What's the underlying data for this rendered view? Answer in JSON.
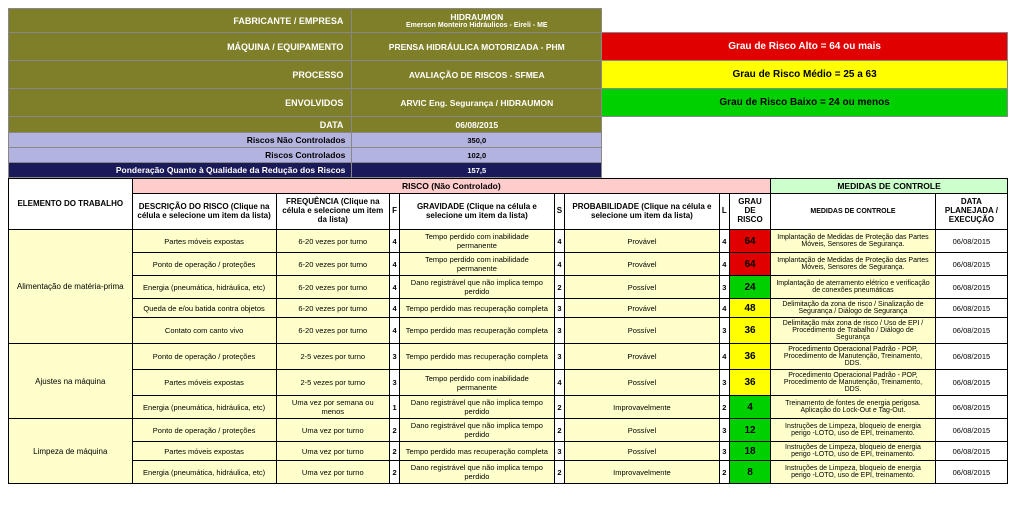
{
  "header": {
    "rows": [
      {
        "label": "FABRICANTE / EMPRESA",
        "value_top": "HIDRAUMON",
        "value_bot": "Emerson Monteiro Hidráulicos - Eireli - ME",
        "legend": null
      },
      {
        "label": "MÁQUINA / EQUIPAMENTO",
        "value": "PRENSA HIDRÁULICA MOTORIZADA - PHM",
        "legend": "alto"
      },
      {
        "label": "PROCESSO",
        "value": "AVALIAÇÃO DE RISCOS - SFMEA",
        "legend": "medio"
      },
      {
        "label": "ENVOLVIDOS",
        "value": "ARVIC Eng. Segurança / HIDRAUMON",
        "legend": "baixo"
      },
      {
        "label": "DATA",
        "value": "06/08/2015",
        "legend": null
      }
    ],
    "legend_text": {
      "alto": "Grau de Risco Alto = 64 ou mais",
      "medio": "Grau de Risco Médio = 25 a 63",
      "baixo": "Grau de Risco Baixo = 24 ou menos"
    },
    "stats": [
      {
        "label": "Riscos Não Controlados",
        "value": "350,0",
        "dark": false
      },
      {
        "label": "Riscos Controlados",
        "value": "102,0",
        "dark": false
      },
      {
        "label": "Ponderação Quanto à Qualidade da Redução dos Riscos",
        "value": "157,5",
        "dark": true
      }
    ]
  },
  "grid": {
    "section_risk": "RISCO (Não Controlado)",
    "section_ctrl": "MEDIDAS DE CONTROLE",
    "cols": {
      "elemento": "ELEMENTO DO TRABALHO",
      "descricao": "DESCRIÇÃO DO RISCO (Clique na célula e selecione um item da lista)",
      "freq": "FREQUÊNCIA (Clique na célula e selecione um item da lista)",
      "f": "F",
      "grav": "GRAVIDADE (Clique na célula e selecione um item da lista)",
      "s": "S",
      "prob": "PROBABILIDADE (Clique na célula e selecione um item da lista)",
      "l": "L",
      "grau": "GRAU DE RISCO",
      "medidas": "MEDIDAS DE CONTROLE",
      "data": "DATA PLANEJADA / EXECUÇÃO"
    },
    "groups": [
      {
        "elemento": "Alimentação de matéria-prima",
        "rows": [
          {
            "desc": "Partes móveis expostas",
            "freq": "6-20 vezes por turno",
            "f": "4",
            "grav": "Tempo perdido com inabilidade permanente",
            "s": "4",
            "prob": "Provável",
            "l": "4",
            "grau": "64",
            "gclass": "g-red",
            "med": "Implantação de Medidas de Proteção das Partes Móveis, Sensores de Segurança.",
            "date": "06/08/2015"
          },
          {
            "desc": "Ponto de operação / proteções",
            "freq": "6-20 vezes por turno",
            "f": "4",
            "grav": "Tempo perdido com inabilidade permanente",
            "s": "4",
            "prob": "Provável",
            "l": "4",
            "grau": "64",
            "gclass": "g-red",
            "med": "Implantação de Medidas de Proteção das Partes Móveis, Sensores de Segurança.",
            "date": "06/08/2015"
          },
          {
            "desc": "Energia (pneumática, hidráulica, etc)",
            "freq": "6-20 vezes por turno",
            "f": "4",
            "grav": "Dano registrável que não implica tempo perdido",
            "s": "2",
            "prob": "Possível",
            "l": "3",
            "grau": "24",
            "gclass": "g-grn",
            "med": "Implantação de aterramento elétrico e verificação de conexões pneumáticas",
            "date": "06/08/2015"
          },
          {
            "desc": "Queda de e/ou batida contra objetos",
            "freq": "6-20 vezes por turno",
            "f": "4",
            "grav": "Tempo perdido mas recuperação completa",
            "s": "3",
            "prob": "Provável",
            "l": "4",
            "grau": "48",
            "gclass": "g-yel",
            "med": "Delimitação da zona de risco / Sinalização de Segurança / Diálogo de Segurança",
            "date": "06/08/2015"
          },
          {
            "desc": "Contato com canto vivo",
            "freq": "6-20 vezes por turno",
            "f": "4",
            "grav": "Tempo perdido mas recuperação completa",
            "s": "3",
            "prob": "Possível",
            "l": "3",
            "grau": "36",
            "gclass": "g-yel",
            "med": "Delimitação máx zona de risco / Uso de EPI / Procedimento de Trabalho / Diálogo de Segurança",
            "date": "06/08/2015"
          }
        ]
      },
      {
        "elemento": "Ajustes na máquina",
        "rows": [
          {
            "desc": "Ponto de operação / proteções",
            "freq": "2-5 vezes por turno",
            "f": "3",
            "grav": "Tempo perdido mas recuperação completa",
            "s": "3",
            "prob": "Provável",
            "l": "4",
            "grau": "36",
            "gclass": "g-yel",
            "med": "Procedimento Operacional Padrão - POP, Procedimento de Manutenção, Treinamento, DDS.",
            "date": "06/08/2015"
          },
          {
            "desc": "Partes móveis expostas",
            "freq": "2-5 vezes por turno",
            "f": "3",
            "grav": "Tempo perdido com inabilidade permanente",
            "s": "4",
            "prob": "Possível",
            "l": "3",
            "grau": "36",
            "gclass": "g-yel",
            "med": "Procedimento Operacional Padrão - POP, Procedimento de Manutenção, Treinamento, DDS.",
            "date": "06/08/2015"
          },
          {
            "desc": "Energia (pneumática, hidráulica, etc)",
            "freq": "Uma vez por semana ou menos",
            "f": "1",
            "grav": "Dano registrável que não implica tempo perdido",
            "s": "2",
            "prob": "Improvavelmente",
            "l": "2",
            "grau": "4",
            "gclass": "g-grn",
            "med": "Treinamento de fontes de energia perigosa. Aplicação do Lock-Out e Tag-Out.",
            "date": "06/08/2015"
          }
        ]
      },
      {
        "elemento": "Limpeza de máquina",
        "rows": [
          {
            "desc": "Ponto de operação / proteções",
            "freq": "Uma vez por turno",
            "f": "2",
            "grav": "Dano registrável que não implica tempo perdido",
            "s": "2",
            "prob": "Possível",
            "l": "3",
            "grau": "12",
            "gclass": "g-grn",
            "med": "Instruções de Limpeza, bloqueio de energia perigo -LOTO, uso de EPI, treinamento.",
            "date": "06/08/2015"
          },
          {
            "desc": "Partes móveis expostas",
            "freq": "Uma vez por turno",
            "f": "2",
            "grav": "Tempo perdido mas recuperação completa",
            "s": "3",
            "prob": "Possível",
            "l": "3",
            "grau": "18",
            "gclass": "g-grn",
            "med": "Instruções de Limpeza, bloqueio de energia perigo -LOTO, uso de EPI, treinamento.",
            "date": "06/08/2015"
          },
          {
            "desc": "Energia (pneumática, hidráulica, etc)",
            "freq": "Uma vez por turno",
            "f": "2",
            "grav": "Dano registrável que não implica tempo perdido",
            "s": "2",
            "prob": "Improvavelmente",
            "l": "2",
            "grau": "8",
            "gclass": "g-grn",
            "med": "Instruções de Limpeza, bloqueio de energia perigo -LOTO, uso de EPI, treinamento.",
            "date": "06/08/2015"
          }
        ]
      }
    ]
  }
}
